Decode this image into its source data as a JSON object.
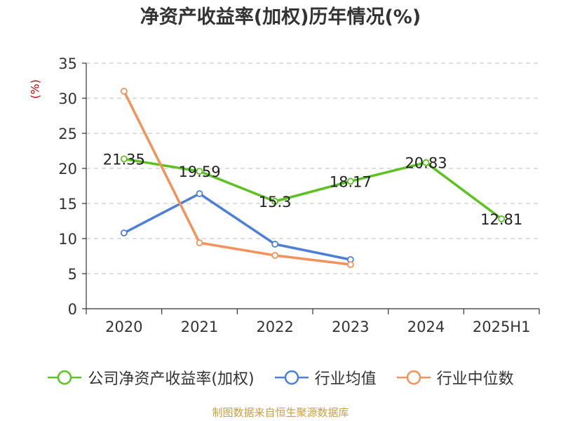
{
  "chart_data": {
    "type": "line",
    "title": "净资产收益率(加权)历年情况(%)",
    "ylabel": "(%)",
    "xlabel": "",
    "categories": [
      "2020",
      "2021",
      "2022",
      "2023",
      "2024",
      "2025H1"
    ],
    "ylim": [
      0,
      35
    ],
    "yticks": [
      0,
      5,
      10,
      15,
      20,
      25,
      30,
      35
    ],
    "grid": "horizontal-dashed",
    "legend_position": "bottom",
    "series": [
      {
        "name": "公司净资产收益率(加权)",
        "color": "#5cc220",
        "values": [
          21.35,
          19.59,
          15.3,
          18.17,
          20.83,
          12.81
        ],
        "labels": [
          "21.35",
          "19.59",
          "15.3",
          "18.17",
          "20.83",
          "12.81"
        ]
      },
      {
        "name": "行业均值",
        "color": "#4c7fd8",
        "values": [
          10.8,
          16.4,
          9.2,
          7.0,
          null,
          null
        ]
      },
      {
        "name": "行业中位数",
        "color": "#f5915a",
        "values": [
          31.0,
          9.4,
          7.6,
          6.3,
          null,
          null
        ]
      }
    ]
  },
  "source": "制图数据来自恒生聚源数据库"
}
